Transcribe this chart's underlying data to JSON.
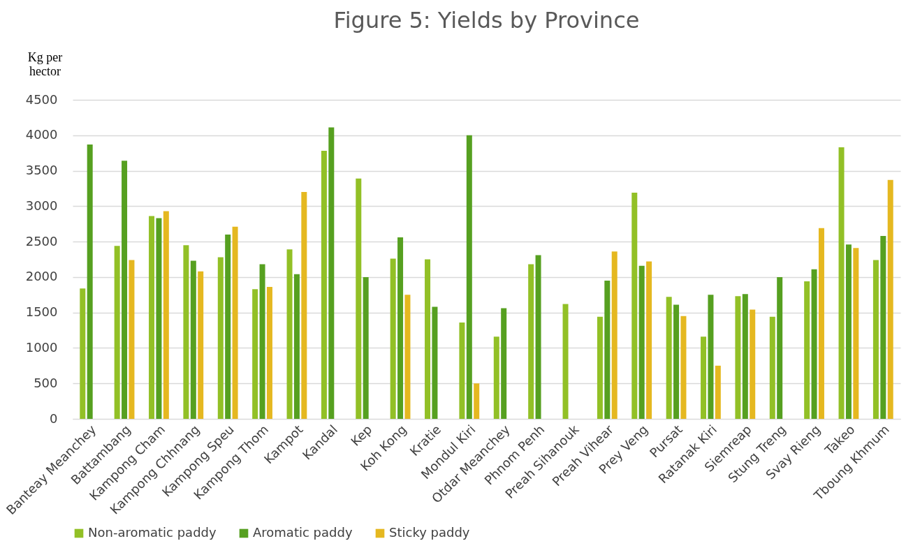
{
  "chart_data": {
    "type": "bar",
    "title": "Figure 5: Yields by Province",
    "ylabel": "Kg per hector",
    "categories": [
      "Banteay Meanchey",
      "Battambang",
      "Kampong Cham",
      "Kampong Chhnang",
      "Kampong Speu",
      "Kampong Thom",
      "Kampot",
      "Kandal",
      "Kep",
      "Koh Kong",
      "Kratie",
      "Mondul Kiri",
      "Otdar Meanchey",
      "Phnom Penh",
      "Preah Sihanouk",
      "Preah Vihear",
      "Prey Veng",
      "Pursat",
      "Ratanak Kiri",
      "Siemreap",
      "Stung Treng",
      "Svay Rieng",
      "Takeo",
      "Tboung Khmum"
    ],
    "series": [
      {
        "name": "Non-aromatic paddy",
        "color": "#92c026",
        "values": [
          1840,
          2440,
          2860,
          2450,
          2280,
          1830,
          2390,
          3780,
          3390,
          2260,
          2250,
          1360,
          1160,
          2180,
          1620,
          1440,
          3190,
          1720,
          1160,
          1730,
          1440,
          1940,
          3830,
          2240
        ]
      },
      {
        "name": "Aromatic paddy",
        "color": "#56a020",
        "values": [
          3870,
          3640,
          2830,
          2230,
          2600,
          2180,
          2040,
          4110,
          2000,
          2560,
          1580,
          4000,
          1560,
          2310,
          null,
          1950,
          2160,
          1610,
          1750,
          1760,
          2000,
          2110,
          2460,
          2580
        ]
      },
      {
        "name": "Sticky paddy",
        "color": "#e5b820",
        "values": [
          null,
          2240,
          2930,
          2080,
          2710,
          1860,
          3200,
          null,
          null,
          1750,
          null,
          500,
          null,
          null,
          null,
          2360,
          2220,
          1450,
          750,
          1540,
          null,
          2690,
          2410,
          3370
        ]
      }
    ],
    "ylim": [
      0,
      4500
    ],
    "yticks": [
      0,
      500,
      1000,
      1500,
      2000,
      2500,
      3000,
      3500,
      4000,
      4500
    ],
    "grid": "y",
    "legend": "bottom"
  }
}
